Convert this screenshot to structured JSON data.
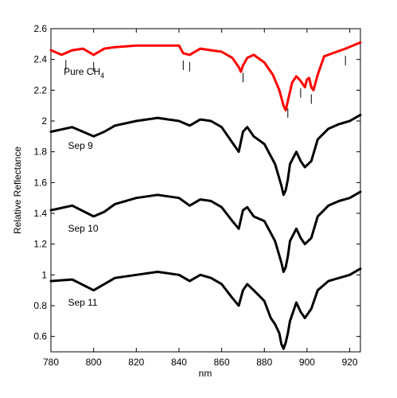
{
  "chart_data": {
    "type": "line",
    "title": "",
    "xlabel": "nm",
    "ylabel": "Relative Reflectance",
    "xlim": [
      780,
      925
    ],
    "ylim": [
      0.5,
      2.6
    ],
    "x_ticks": [
      780,
      800,
      820,
      840,
      860,
      880,
      900,
      920
    ],
    "y_ticks": [
      0.6,
      0.8,
      1,
      1.2,
      1.4,
      1.6,
      1.8,
      2,
      2.2,
      2.4,
      2.6
    ],
    "grid": false,
    "legend": "none",
    "series": [
      {
        "name": "Pure CH4",
        "color": "#ff0000",
        "x": [
          780,
          785,
          790,
          795,
          800,
          805,
          810,
          820,
          830,
          840,
          842,
          845,
          850,
          855,
          860,
          865,
          868,
          869,
          870,
          872,
          875,
          880,
          884,
          887,
          889,
          890,
          891,
          893,
          895,
          897,
          899,
          900,
          901,
          902,
          903,
          905,
          908,
          912,
          918,
          925
        ],
        "y": [
          2.46,
          2.43,
          2.46,
          2.47,
          2.43,
          2.47,
          2.48,
          2.49,
          2.49,
          2.49,
          2.44,
          2.43,
          2.47,
          2.46,
          2.45,
          2.41,
          2.35,
          2.32,
          2.36,
          2.41,
          2.43,
          2.38,
          2.3,
          2.2,
          2.1,
          2.07,
          2.13,
          2.25,
          2.29,
          2.26,
          2.22,
          2.27,
          2.28,
          2.22,
          2.2,
          2.3,
          2.42,
          2.44,
          2.47,
          2.51
        ]
      },
      {
        "name": "Sep 9",
        "color": "#000000",
        "x": [
          780,
          790,
          800,
          805,
          810,
          820,
          830,
          840,
          845,
          850,
          855,
          860,
          865,
          868,
          870,
          872,
          875,
          880,
          885,
          888,
          889,
          890,
          891,
          892,
          895,
          897,
          899,
          902,
          905,
          910,
          915,
          920,
          925
        ],
        "y": [
          1.93,
          1.96,
          1.9,
          1.93,
          1.97,
          2.0,
          2.02,
          2.0,
          1.97,
          2.01,
          2.0,
          1.96,
          1.86,
          1.8,
          1.93,
          1.96,
          1.9,
          1.85,
          1.72,
          1.58,
          1.52,
          1.55,
          1.62,
          1.72,
          1.8,
          1.74,
          1.7,
          1.74,
          1.88,
          1.95,
          1.98,
          2.0,
          2.04
        ]
      },
      {
        "name": "Sep 10",
        "color": "#000000",
        "x": [
          780,
          790,
          800,
          805,
          810,
          820,
          830,
          840,
          845,
          850,
          855,
          860,
          865,
          868,
          870,
          872,
          875,
          880,
          885,
          888,
          889,
          890,
          891,
          892,
          895,
          897,
          899,
          902,
          905,
          910,
          915,
          920,
          925
        ],
        "y": [
          1.42,
          1.45,
          1.38,
          1.41,
          1.46,
          1.5,
          1.52,
          1.5,
          1.45,
          1.49,
          1.48,
          1.44,
          1.35,
          1.3,
          1.42,
          1.44,
          1.38,
          1.35,
          1.22,
          1.08,
          1.02,
          1.05,
          1.12,
          1.22,
          1.3,
          1.24,
          1.2,
          1.24,
          1.38,
          1.45,
          1.48,
          1.5,
          1.54
        ]
      },
      {
        "name": "Sep 11",
        "color": "#000000",
        "x": [
          780,
          790,
          800,
          805,
          810,
          820,
          830,
          840,
          845,
          850,
          855,
          860,
          865,
          868,
          870,
          872,
          875,
          880,
          883,
          885,
          887,
          888,
          889,
          890,
          891,
          892,
          895,
          897,
          899,
          902,
          905,
          910,
          915,
          920,
          925
        ],
        "y": [
          0.96,
          0.97,
          0.9,
          0.94,
          0.98,
          1.0,
          1.02,
          1.0,
          0.96,
          1.0,
          0.98,
          0.94,
          0.85,
          0.8,
          0.9,
          0.94,
          0.9,
          0.83,
          0.72,
          0.68,
          0.62,
          0.55,
          0.52,
          0.56,
          0.62,
          0.7,
          0.82,
          0.76,
          0.72,
          0.78,
          0.9,
          0.96,
          0.98,
          1.0,
          1.04
        ]
      }
    ],
    "absorption_markers": [
      787,
      800,
      842,
      845,
      870,
      891,
      897,
      902,
      918
    ],
    "annotations": [
      {
        "text": "Pure CH",
        "subscript": "4",
        "x": 786,
        "y": 2.3
      },
      {
        "text": "Sep 9",
        "x": 788,
        "y": 1.82
      },
      {
        "text": "Sep 10",
        "x": 788,
        "y": 1.28
      },
      {
        "text": "Sep 11",
        "x": 788,
        "y": 0.8
      }
    ]
  }
}
